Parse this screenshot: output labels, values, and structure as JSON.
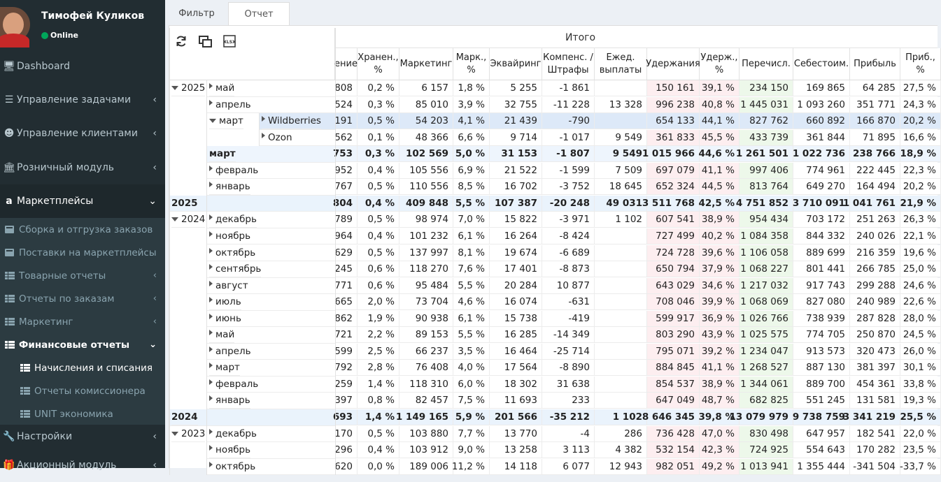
{
  "user": {
    "name": "Тимофей Куликов",
    "status": "Online"
  },
  "menu": {
    "dashboard": "Dashboard",
    "tasks": "Управление задачами",
    "clients": "Управление клиентами",
    "retail": "Розничный модуль",
    "marketplaces": "Маркетплейсы",
    "settings": "Настройки",
    "promo": "Акционный модуль",
    "sub": {
      "assembly": "Сборка и отгрузка заказов",
      "supplies": "Поставки на маркетплейсы",
      "product_reports": "Товарные отчеты",
      "order_reports": "Отчеты по заказам",
      "marketing": "Маркетинг",
      "finance": "Финансовые отчеты",
      "accruals": "Начисления и списания",
      "commission": "Отчеты комиссионера",
      "unit": "UNIT экономика"
    }
  },
  "tabs": {
    "filter": "Фильтр",
    "report": "Отчет"
  },
  "table": {
    "group_header": "Итого",
    "columns": [
      {
        "key": "c1",
        "label": "ение"
      },
      {
        "key": "c2",
        "label": "Хранен.,\n%"
      },
      {
        "key": "c3",
        "label": "Маркетинг"
      },
      {
        "key": "c4",
        "label": "Марк.,\n%"
      },
      {
        "key": "c5",
        "label": "Эквайринг"
      },
      {
        "key": "c6",
        "label": "Компенс. /\nШтрафы"
      },
      {
        "key": "c7",
        "label": "Ежед.\nвыплаты"
      },
      {
        "key": "c8",
        "label": "Удержания"
      },
      {
        "key": "c9",
        "label": "Удерж.,\n%"
      },
      {
        "key": "c10",
        "label": "Перечисл."
      },
      {
        "key": "c11",
        "label": "Себестоим."
      },
      {
        "key": "c12",
        "label": "Прибыль"
      },
      {
        "key": "c13",
        "label": "Приб.,\n%"
      }
    ],
    "rows": [
      {
        "year": "2025",
        "yearCaret": "d",
        "month": "май",
        "caret": "r",
        "v": [
          "808",
          "0,2 %",
          "6 157",
          "1,8 %",
          "5 255",
          "-1 861",
          "",
          "150 161",
          "39,1 %",
          "234 150",
          "169 865",
          "64 285",
          "27,5 %"
        ]
      },
      {
        "month": "апрель",
        "caret": "r",
        "v": [
          "524",
          "0,3 %",
          "85 010",
          "3,9 %",
          "32 755",
          "-11 228",
          "13 328",
          "996 238",
          "40,8 %",
          "1 445 031",
          "1 093 260",
          "351 771",
          "24,3 %"
        ]
      },
      {
        "month": "март",
        "caret": "d",
        "sub": "Wildberries",
        "subCaret": "r",
        "hl": true,
        "v": [
          "191",
          "0,5 %",
          "54 203",
          "4,1 %",
          "21 439",
          "-790",
          "",
          "654 133",
          "44,1 %",
          "827 762",
          "660 892",
          "166 870",
          "20,2 %"
        ]
      },
      {
        "sub": "Ozon",
        "subCaret": "r",
        "v": [
          "562",
          "0,1 %",
          "48 366",
          "6,6 %",
          "9 714",
          "-1 017",
          "9 549",
          "361 833",
          "45,5 %",
          "433 739",
          "361 844",
          "71 895",
          "16,6 %"
        ]
      },
      {
        "month": "март",
        "total": "month",
        "v": [
          "753",
          "0,3 %",
          "102 569",
          "5,0 %",
          "31 153",
          "-1 807",
          "9 549",
          "1 015 966",
          "44,6 %",
          "1 261 501",
          "1 022 736",
          "238 766",
          "18,9 %"
        ]
      },
      {
        "month": "февраль",
        "caret": "r",
        "v": [
          "952",
          "0,4 %",
          "105 556",
          "6,9 %",
          "21 522",
          "-1 599",
          "7 509",
          "697 079",
          "41,1 %",
          "997 406",
          "774 961",
          "222 445",
          "22,3 %"
        ]
      },
      {
        "month": "январь",
        "caret": "r",
        "v": [
          "767",
          "0,5 %",
          "110 556",
          "8,5 %",
          "16 702",
          "-3 752",
          "18 645",
          "652 324",
          "44,5 %",
          "813 764",
          "649 270",
          "164 494",
          "20,2 %"
        ]
      },
      {
        "year": "2025",
        "total": "year",
        "v": [
          "804",
          "0,4 %",
          "409 848",
          "5,5 %",
          "107 387",
          "-20 248",
          "49 031",
          "3 511 768",
          "42,5 %",
          "4 751 852",
          "3 710 091",
          "1 041 761",
          "21,9 %"
        ]
      },
      {
        "year": "2024",
        "yearCaret": "d",
        "month": "декабрь",
        "caret": "r",
        "v": [
          "789",
          "0,5 %",
          "98 974",
          "7,0 %",
          "15 822",
          "-3 971",
          "1 102",
          "607 541",
          "38,9 %",
          "954 434",
          "703 172",
          "251 263",
          "26,3 %"
        ]
      },
      {
        "month": "ноябрь",
        "caret": "r",
        "v": [
          "964",
          "0,4 %",
          "101 232",
          "6,1 %",
          "16 264",
          "-8 424",
          "",
          "727 499",
          "40,2 %",
          "1 084 358",
          "844 332",
          "240 026",
          "22,1 %"
        ]
      },
      {
        "month": "октябрь",
        "caret": "r",
        "v": [
          "629",
          "0,5 %",
          "137 997",
          "8,1 %",
          "19 674",
          "-6 689",
          "",
          "724 728",
          "39,6 %",
          "1 106 058",
          "889 699",
          "216 359",
          "19,6 %"
        ]
      },
      {
        "month": "сентябрь",
        "caret": "r",
        "v": [
          "245",
          "0,6 %",
          "118 270",
          "7,6 %",
          "17 401",
          "-8 873",
          "",
          "650 794",
          "37,9 %",
          "1 068 227",
          "801 441",
          "266 785",
          "25,0 %"
        ]
      },
      {
        "month": "август",
        "caret": "r",
        "v": [
          "771",
          "0,6 %",
          "95 484",
          "5,5 %",
          "20 284",
          "10 877",
          "",
          "643 029",
          "34,6 %",
          "1 217 032",
          "917 743",
          "299 288",
          "24,6 %"
        ]
      },
      {
        "month": "июль",
        "caret": "r",
        "v": [
          "665",
          "2,0 %",
          "73 704",
          "4,6 %",
          "16 074",
          "-631",
          "",
          "708 046",
          "39,9 %",
          "1 068 069",
          "827 080",
          "240 989",
          "22,6 %"
        ]
      },
      {
        "month": "июнь",
        "caret": "r",
        "v": [
          "862",
          "1,9 %",
          "90 938",
          "6,1 %",
          "15 738",
          "-419",
          "",
          "599 917",
          "36,9 %",
          "1 026 766",
          "738 939",
          "287 828",
          "28,0 %"
        ]
      },
      {
        "month": "май",
        "caret": "r",
        "v": [
          "721",
          "2,2 %",
          "89 153",
          "5,5 %",
          "16 285",
          "-14 349",
          "",
          "803 290",
          "43,9 %",
          "1 025 575",
          "774 705",
          "250 870",
          "24,5 %"
        ]
      },
      {
        "month": "апрель",
        "caret": "r",
        "v": [
          "599",
          "2,5 %",
          "66 237",
          "3,5 %",
          "16 464",
          "-25 714",
          "",
          "795 071",
          "39,2 %",
          "1 234 047",
          "913 573",
          "320 473",
          "26,0 %"
        ]
      },
      {
        "month": "март",
        "caret": "r",
        "v": [
          "792",
          "2,8 %",
          "76 408",
          "4,0 %",
          "17 564",
          "-8 890",
          "",
          "884 845",
          "41,1 %",
          "1 268 527",
          "887 130",
          "381 397",
          "30,1 %"
        ]
      },
      {
        "month": "февраль",
        "caret": "r",
        "v": [
          "259",
          "1,4 %",
          "118 310",
          "6,0 %",
          "18 302",
          "31 638",
          "",
          "854 537",
          "38,9 %",
          "1 344 061",
          "889 700",
          "454 361",
          "33,8 %"
        ]
      },
      {
        "month": "январь",
        "caret": "r",
        "v": [
          "397",
          "0,8 %",
          "82 457",
          "7,5 %",
          "11 693",
          "233",
          "",
          "647 049",
          "48,7 %",
          "682 825",
          "551 245",
          "131 581",
          "19,3 %"
        ]
      },
      {
        "year": "2024",
        "total": "year",
        "v": [
          "693",
          "1,4 %",
          "1 149 165",
          "5,9 %",
          "201 566",
          "-35 212",
          "1 102",
          "8 646 345",
          "39,8 %",
          "13 079 979",
          "9 738 759",
          "3 341 219",
          "25,5 %"
        ]
      },
      {
        "year": "2023",
        "yearCaret": "d",
        "month": "декабрь",
        "caret": "r",
        "v": [
          "170",
          "0,5 %",
          "103 880",
          "7,7 %",
          "13 770",
          "-4",
          "286",
          "736 428",
          "47,0 %",
          "830 498",
          "647 957",
          "182 541",
          "22,0 %"
        ]
      },
      {
        "month": "ноябрь",
        "caret": "r",
        "v": [
          "296",
          "0,4 %",
          "103 912",
          "9,0 %",
          "13 258",
          "3 113",
          "4 382",
          "532 154",
          "42,3 %",
          "724 925",
          "554 643",
          "170 282",
          "23,5 %"
        ]
      },
      {
        "month": "октябрь",
        "caret": "r",
        "v": [
          "620",
          "0,0 %",
          "189 006",
          "11,2 %",
          "14 118",
          "6 077",
          "12 943",
          "982 051",
          "49,2 %",
          "1 013 941",
          "1 355 444",
          "-341 504",
          "-33,7 %"
        ]
      }
    ]
  },
  "colors": {
    "sidebar": "#222d32",
    "year_total_bg": "#eaf3fc",
    "month_total_bg": "#eef5fd",
    "highlight_row_bg": "#dde9f8",
    "uderzh_bg": "#fdeef0",
    "perech_bg": "#edf8ea"
  }
}
